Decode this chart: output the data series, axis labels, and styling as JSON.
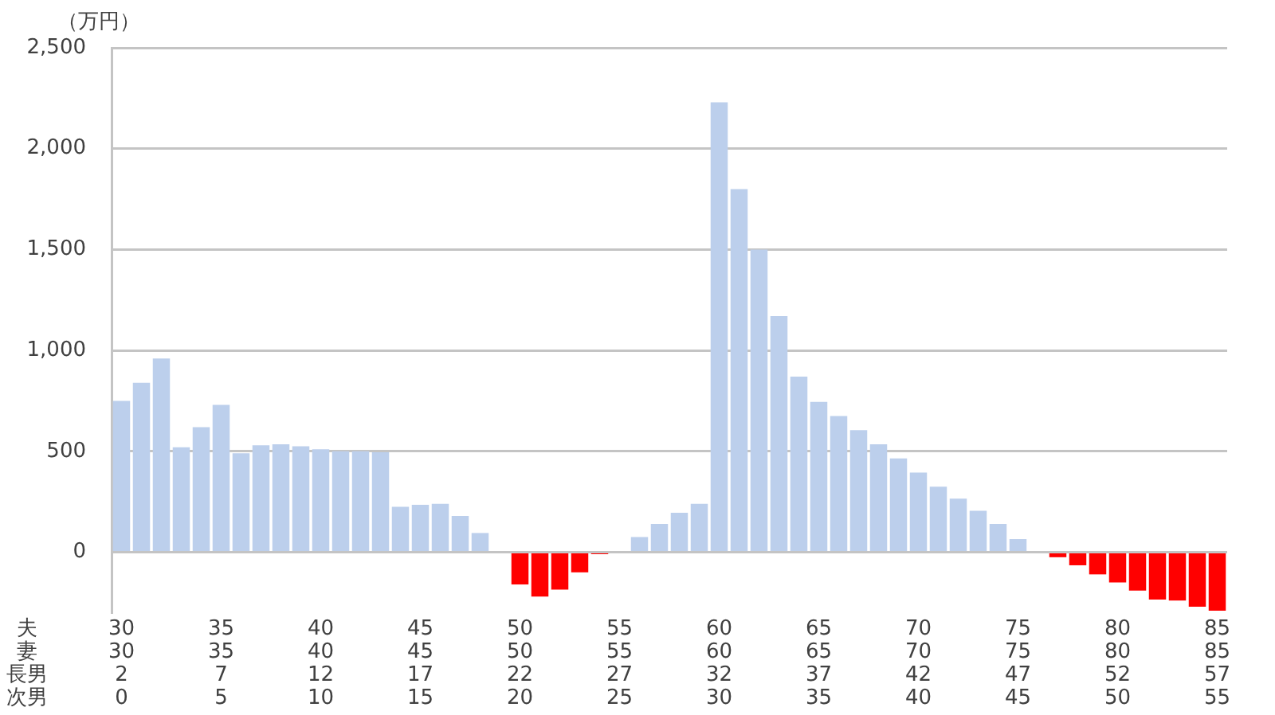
{
  "chart_data": {
    "type": "bar",
    "ylabel": "（万円）",
    "annotations": [
      "夫",
      "妻",
      "長男",
      "次男"
    ],
    "categories": [
      "30\n30\n2\n0",
      null,
      null,
      null,
      null,
      "35\n35\n7\n5",
      null,
      null,
      null,
      null,
      "40\n40\n12\n10",
      null,
      null,
      null,
      null,
      "45\n45\n17\n15",
      null,
      null,
      null,
      null,
      "50\n50\n22\n20",
      null,
      null,
      null,
      null,
      "55\n55\n27\n25",
      null,
      null,
      null,
      null,
      "60\n60\n32\n30",
      null,
      null,
      null,
      null,
      "65\n65\n37\n35",
      null,
      null,
      null,
      null,
      "70\n70\n42\n40",
      null,
      null,
      null,
      null,
      "75\n75\n47\n45",
      null,
      null,
      null,
      null,
      "80\n80\n52\n50",
      null,
      null,
      null,
      null,
      "85\n85\n57\n55"
    ],
    "values": [
      750,
      840,
      960,
      520,
      620,
      730,
      490,
      530,
      535,
      525,
      510,
      500,
      500,
      495,
      225,
      235,
      240,
      180,
      95,
      0,
      -160,
      -220,
      -185,
      -100,
      -10,
      0,
      75,
      140,
      195,
      240,
      2230,
      1800,
      1500,
      1170,
      870,
      745,
      675,
      605,
      535,
      465,
      395,
      325,
      265,
      205,
      140,
      65,
      0,
      -25,
      -65,
      -110,
      -150,
      -190,
      -235,
      -240,
      -270,
      -290
    ],
    "colors": [
      "#bccfec",
      "#bccfec",
      "#bccfec",
      "#bccfec",
      "#bccfec",
      "#bccfec",
      "#bccfec",
      "#bccfec",
      "#bccfec",
      "#bccfec",
      "#bccfec",
      "#bccfec",
      "#bccfec",
      "#bccfec",
      "#bccfec",
      "#bccfec",
      "#bccfec",
      "#bccfec",
      "#bccfec",
      "#bccfec",
      "#ff0000",
      "#ff0000",
      "#ff0000",
      "#ff0000",
      "#ff0000",
      "#bccfec",
      "#bccfec",
      "#bccfec",
      "#bccfec",
      "#bccfec",
      "#bccfec",
      "#bccfec",
      "#bccfec",
      "#bccfec",
      "#bccfec",
      "#bccfec",
      "#bccfec",
      "#bccfec",
      "#bccfec",
      "#bccfec",
      "#bccfec",
      "#bccfec",
      "#bccfec",
      "#bccfec",
      "#bccfec",
      "#bccfec",
      "#bccfec",
      "#ff0000",
      "#ff0000",
      "#ff0000",
      "#ff0000",
      "#ff0000",
      "#ff0000",
      "#ff0000",
      "#ff0000",
      "#ff0000"
    ],
    "ylim": [
      -300,
      2500
    ],
    "yticks": [
      0,
      500,
      {
        "value": 1000,
        "label": "1,000"
      },
      {
        "value": 1500,
        "label": "1,500"
      },
      {
        "value": 2000,
        "label": "2,000"
      },
      {
        "value": 2500,
        "label": "2,500"
      }
    ],
    "grid": "y"
  }
}
